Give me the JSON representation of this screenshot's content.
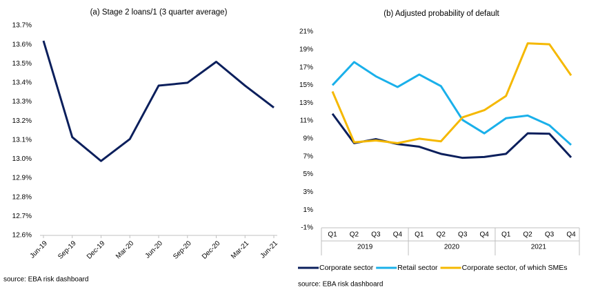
{
  "chart_data": [
    {
      "type": "line",
      "title": "(a) Stage 2 loans/1 (3 quarter average)",
      "categories": [
        "Jun-19",
        "Sep-19",
        "Dec-19",
        "Mar-20",
        "Jun-20",
        "Sep-20",
        "Dec-20",
        "Mar-21",
        "Jun-21"
      ],
      "series": [
        {
          "name": null,
          "color": "#0b1f5c",
          "values": [
            13.62,
            13.115,
            12.99,
            13.105,
            13.385,
            13.4,
            13.51,
            13.385,
            13.27
          ]
        }
      ],
      "ylim": [
        12.6,
        13.7
      ],
      "yticks": [
        {
          "value": 12.6,
          "label": "12.6%"
        },
        {
          "value": 12.7,
          "label": "12.7%"
        },
        {
          "value": 12.8,
          "label": "12.8%"
        },
        {
          "value": 12.9,
          "label": "12.9%"
        },
        {
          "value": 13.0,
          "label": "13.0%"
        },
        {
          "value": 13.1,
          "label": "13.1%"
        },
        {
          "value": 13.2,
          "label": "13.2%"
        },
        {
          "value": 13.3,
          "label": "13.3%"
        },
        {
          "value": 13.4,
          "label": "13.4%"
        },
        {
          "value": 13.5,
          "label": "13.5%"
        },
        {
          "value": 13.6,
          "label": "13.6%"
        },
        {
          "value": 13.7,
          "label": "13.7%"
        }
      ],
      "grid": false,
      "note": "source: EBA risk dashboard"
    },
    {
      "type": "line",
      "title": "(b) Adjusted probability of default",
      "categories": [
        "Q1",
        "Q2",
        "Q3",
        "Q4",
        "Q1",
        "Q2",
        "Q3",
        "Q4",
        "Q1",
        "Q2",
        "Q3",
        "Q4"
      ],
      "groups": [
        "2019",
        "2020",
        "2021"
      ],
      "series": [
        {
          "name": "Corporate sector",
          "color": "#0b1f5c",
          "values": [
            11.8,
            8.5,
            8.95,
            8.4,
            8.1,
            7.3,
            6.85,
            6.95,
            7.3,
            9.6,
            9.55,
            6.9
          ]
        },
        {
          "name": "Retail sector",
          "color": "#1ab0ea",
          "values": [
            15.0,
            17.6,
            16.0,
            14.8,
            16.2,
            14.9,
            11.1,
            9.6,
            11.3,
            11.6,
            10.5,
            8.3
          ]
        },
        {
          "name": "Corporate sector, of which SMEs",
          "color": "#f5b800",
          "values": [
            14.3,
            8.6,
            8.8,
            8.5,
            9.0,
            8.7,
            11.4,
            12.2,
            13.8,
            19.7,
            19.6,
            16.1
          ]
        }
      ],
      "ylim": [
        -1,
        21
      ],
      "yticks": [
        {
          "value": -1,
          "label": "-1%"
        },
        {
          "value": 1,
          "label": "1%"
        },
        {
          "value": 3,
          "label": "3%"
        },
        {
          "value": 5,
          "label": "5%"
        },
        {
          "value": 7,
          "label": "7%"
        },
        {
          "value": 9,
          "label": "9%"
        },
        {
          "value": 11,
          "label": "11%"
        },
        {
          "value": 13,
          "label": "13%"
        },
        {
          "value": 15,
          "label": "15%"
        },
        {
          "value": 17,
          "label": "17%"
        },
        {
          "value": 19,
          "label": "19%"
        },
        {
          "value": 21,
          "label": "21%"
        }
      ],
      "grid": false,
      "legend": "bottom",
      "note": "source: EBA risk dashboard"
    }
  ]
}
